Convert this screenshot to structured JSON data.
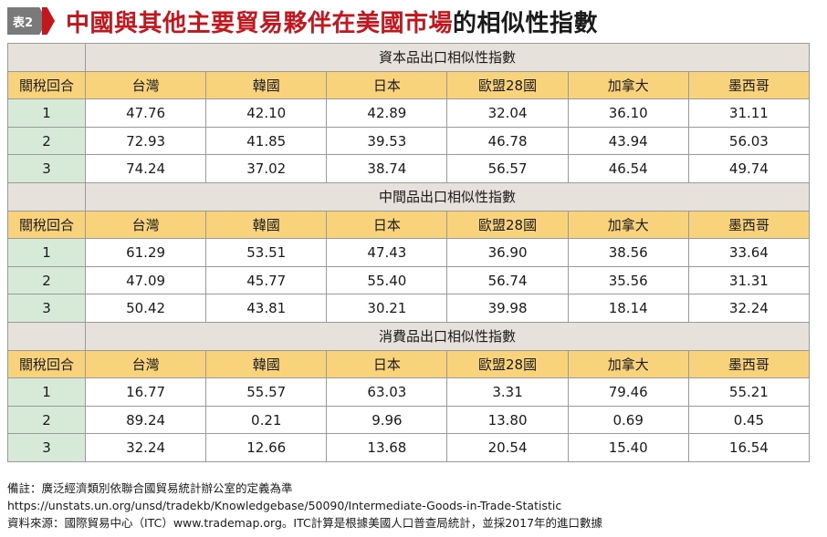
{
  "header": {
    "badge": "表2",
    "title_red": "中國與其他主要貿易夥伴在美國市場",
    "title_black": "的相似性指數"
  },
  "table": {
    "round_header": "關稅回合",
    "countries": [
      "台灣",
      "韓國",
      "日本",
      "歐盟28國",
      "加拿大",
      "墨西哥"
    ],
    "sections": [
      {
        "title": "資本品出口相似性指數",
        "rows": [
          {
            "round": "1",
            "values": [
              "47.76",
              "42.10",
              "42.89",
              "32.04",
              "36.10",
              "31.11"
            ]
          },
          {
            "round": "2",
            "values": [
              "72.93",
              "41.85",
              "39.53",
              "46.78",
              "43.94",
              "56.03"
            ]
          },
          {
            "round": "3",
            "values": [
              "74.24",
              "37.02",
              "38.74",
              "56.57",
              "46.54",
              "49.74"
            ]
          }
        ]
      },
      {
        "title": "中間品出口相似性指數",
        "rows": [
          {
            "round": "1",
            "values": [
              "61.29",
              "53.51",
              "47.43",
              "36.90",
              "38.56",
              "33.64"
            ]
          },
          {
            "round": "2",
            "values": [
              "47.09",
              "45.77",
              "55.40",
              "56.74",
              "35.56",
              "31.31"
            ]
          },
          {
            "round": "3",
            "values": [
              "50.42",
              "43.81",
              "30.21",
              "39.98",
              "18.14",
              "32.24"
            ]
          }
        ]
      },
      {
        "title": "消費品出口相似性指數",
        "rows": [
          {
            "round": "1",
            "values": [
              "16.77",
              "55.57",
              "63.03",
              "3.31",
              "79.46",
              "55.21"
            ]
          },
          {
            "round": "2",
            "values": [
              "89.24",
              "0.21",
              "9.96",
              "13.80",
              "0.69",
              "0.45"
            ]
          },
          {
            "round": "3",
            "values": [
              "32.24",
              "12.66",
              "13.68",
              "20.54",
              "15.40",
              "16.54"
            ]
          }
        ]
      }
    ]
  },
  "notes": {
    "line1": "備註：廣泛經濟類別依聯合國貿易統計辦公室的定義為準",
    "line2": "https://unstats.un.org/unsd/tradekb/Knowledgebase/50090/Intermediate-Goods-in-Trade-Statistic",
    "line3": "資料來源：國際貿易中心（ITC）www.trademap.org。ITC計算是根據美國人口普查局統計，並採2017年的進口數據"
  },
  "colors": {
    "title_red": "#c4161c",
    "header_yellow": "#f9d27c",
    "section_grey": "#e6e1da",
    "round_green": "#d7ead7"
  }
}
